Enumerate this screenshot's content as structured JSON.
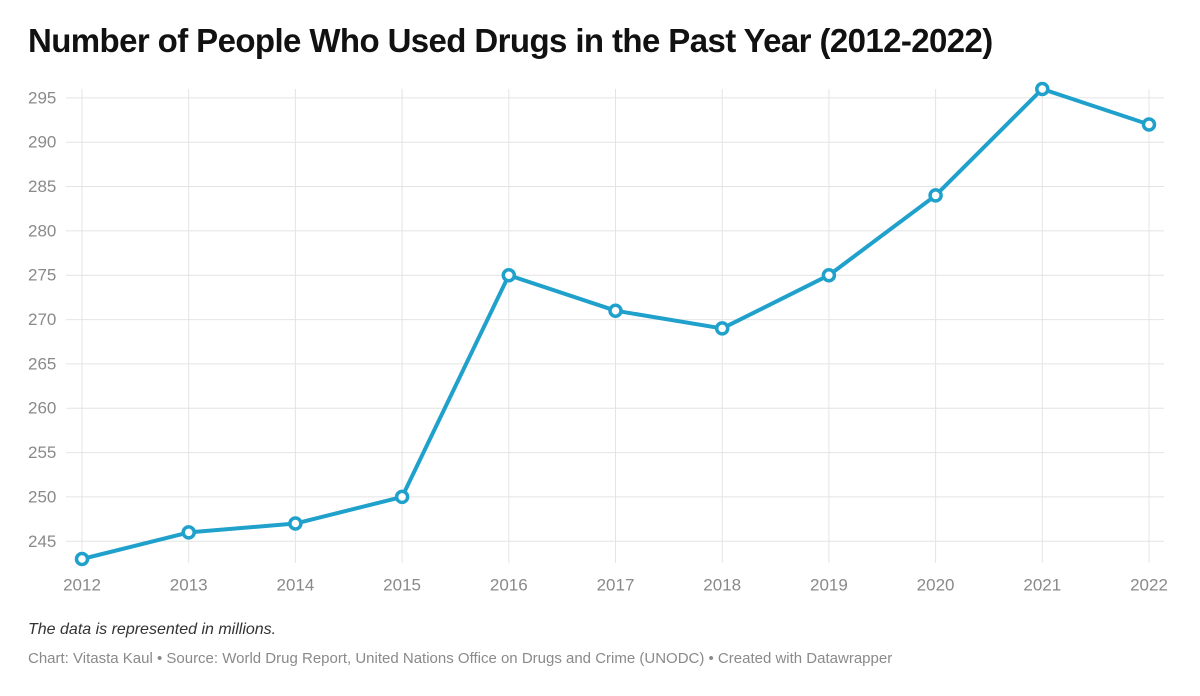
{
  "chart_data": {
    "type": "line",
    "title": "Number of People Who Used Drugs in the Past Year (2012-2022)",
    "xlabel": "",
    "ylabel": "",
    "x": [
      "2012",
      "2013",
      "2014",
      "2015",
      "2016",
      "2017",
      "2018",
      "2019",
      "2020",
      "2021",
      "2022"
    ],
    "series": [
      {
        "values": [
          243,
          246,
          247,
          250,
          275,
          271,
          269,
          275,
          284,
          296,
          292
        ]
      }
    ],
    "yticks": [
      245,
      250,
      255,
      260,
      265,
      270,
      275,
      280,
      285,
      290,
      295
    ],
    "ylim": [
      243,
      296
    ],
    "grid": true,
    "legend": "none",
    "line_color": "#1fa1cc",
    "grid_color": "#e4e4e4",
    "note": "The data is represented in millions.",
    "footer": "Chart: Vitasta Kaul • Source: World Drug Report, United Nations Office on Drugs and Crime (UNODC) • Created with Datawrapper"
  }
}
